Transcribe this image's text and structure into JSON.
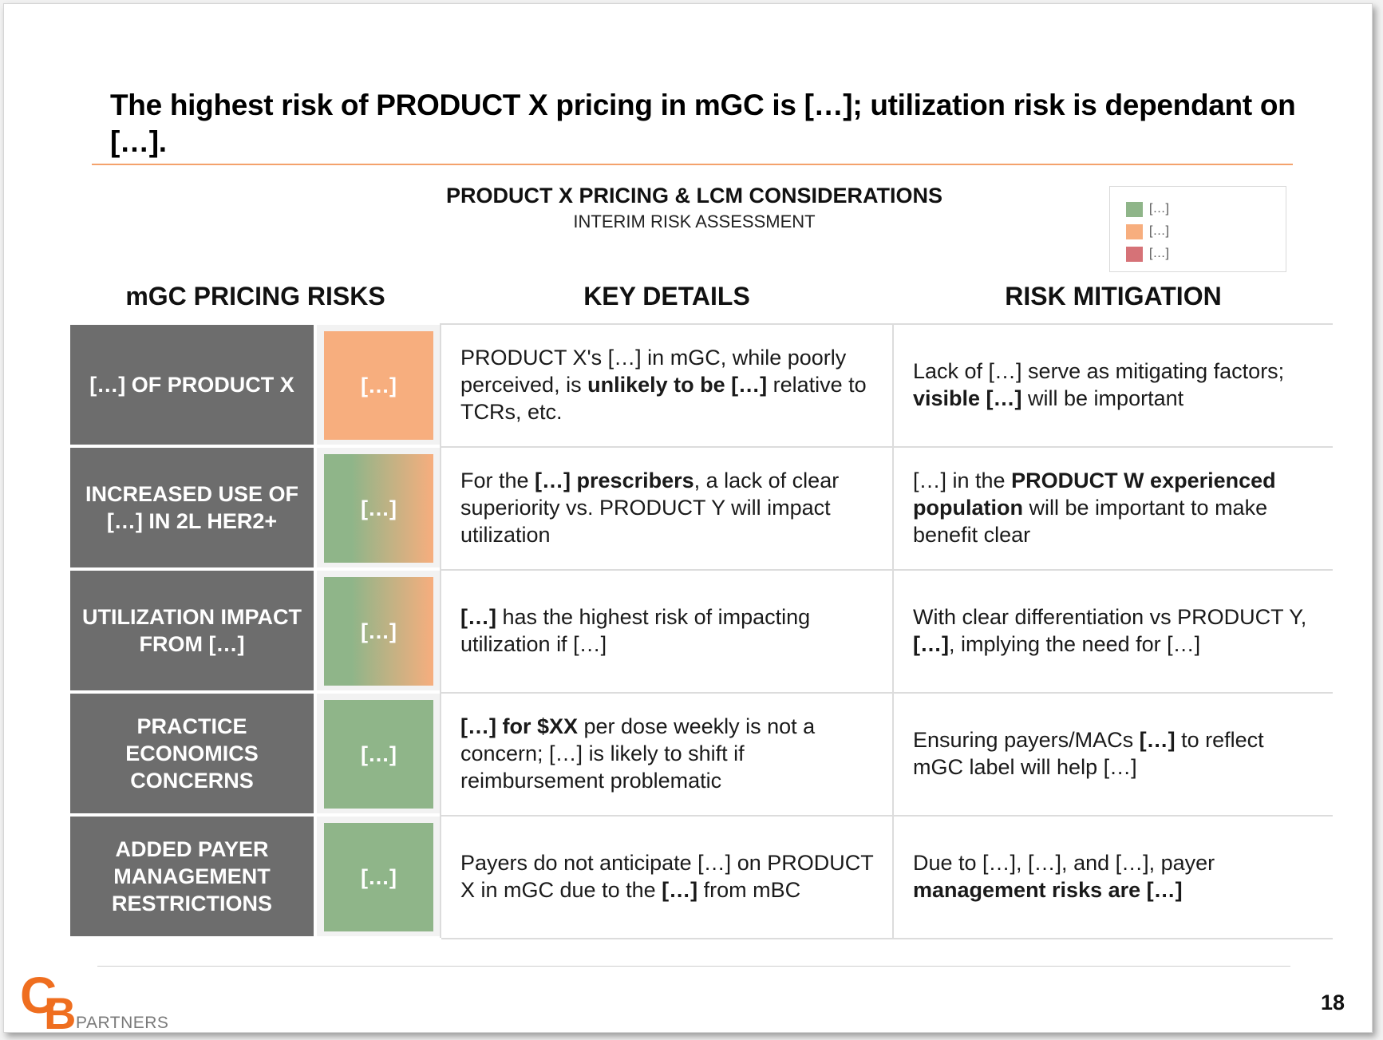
{
  "slide": {
    "title": "The highest risk of PRODUCT X pricing in mGC is […]; utilization risk is dependant on […].",
    "chart_title": "PRODUCT X PRICING & LCM CONSIDERATIONS",
    "chart_subtitle": "INTERIM RISK ASSESSMENT",
    "page_number": "18"
  },
  "legend": [
    {
      "label": "[…]",
      "color": "#8fb589"
    },
    {
      "label": "[…]",
      "color": "#f7ae7e"
    },
    {
      "label": "[…]",
      "color": "#d67277"
    }
  ],
  "columns": {
    "risks": "mGC PRICING RISKS",
    "details": "KEY DETAILS",
    "mitigation": "RISK MITIGATION"
  },
  "colors": {
    "green": "#8fb589",
    "orange": "#f7ae7e",
    "label_bg": "#6d6d6d",
    "accent_rule": "#f4a26c",
    "logo_orange": "#ef6e1f"
  },
  "rows": [
    {
      "risk": "[…] OF PRODUCT X",
      "rating": "[…]",
      "rating_level": "orange",
      "details": [
        {
          "t": "PRODUCT X's […] in mGC, while poorly perceived, is ",
          "b": false
        },
        {
          "t": "unlikely to be […]",
          "b": true
        },
        {
          "t": " relative to TCRs, etc.",
          "b": false
        }
      ],
      "mitigation": [
        {
          "t": "Lack of […] serve as mitigating factors; ",
          "b": false
        },
        {
          "t": "visible […]",
          "b": true
        },
        {
          "t": " will be important",
          "b": false
        }
      ]
    },
    {
      "risk": "INCREASED USE OF […] IN 2L HER2+",
      "rating": "[…]",
      "rating_level": "green-orange",
      "details": [
        {
          "t": "For the ",
          "b": false
        },
        {
          "t": "[…] prescribers",
          "b": true
        },
        {
          "t": ", a lack of clear superiority vs. PRODUCT Y will impact utilization",
          "b": false
        }
      ],
      "mitigation": [
        {
          "t": "[…] in the ",
          "b": false
        },
        {
          "t": "PRODUCT W experienced population",
          "b": true
        },
        {
          "t": " will be important to make benefit clear",
          "b": false
        }
      ]
    },
    {
      "risk": "UTILIZATION IMPACT FROM […]",
      "rating": "[…]",
      "rating_level": "green-orange",
      "details": [
        {
          "t": "[…]",
          "b": true
        },
        {
          "t": " has the highest risk of impacting utilization  if […]",
          "b": false
        }
      ],
      "mitigation": [
        {
          "t": "With clear differentiation vs PRODUCT Y, ",
          "b": false
        },
        {
          "t": "[…]",
          "b": true
        },
        {
          "t": ", implying the need for […]",
          "b": false
        }
      ]
    },
    {
      "risk": "PRACTICE ECONOMICS CONCERNS",
      "rating": "[…]",
      "rating_level": "green",
      "details": [
        {
          "t": "[…] for $XX",
          "b": true
        },
        {
          "t": " per dose weekly is not a concern; […] is likely to shift if reimbursement  problematic",
          "b": false
        }
      ],
      "mitigation": [
        {
          "t": "Ensuring payers/MACs ",
          "b": false
        },
        {
          "t": "[…]",
          "b": true
        },
        {
          "t": " to reflect mGC label will help […]",
          "b": false
        }
      ]
    },
    {
      "risk": "ADDED PAYER MANAGEMENT RESTRICTIONS",
      "rating": "[…]",
      "rating_level": "green",
      "details": [
        {
          "t": "Payers do not anticipate […] on PRODUCT X in mGC due to the ",
          "b": false
        },
        {
          "t": "[…]",
          "b": true
        },
        {
          "t": " from mBC",
          "b": false
        }
      ],
      "mitigation": [
        {
          "t": "Due to […], […], and […], payer ",
          "b": false
        },
        {
          "t": "management risks are […]",
          "b": true
        }
      ]
    }
  ],
  "logo": {
    "letters": "CB",
    "word": "PARTNERS"
  }
}
